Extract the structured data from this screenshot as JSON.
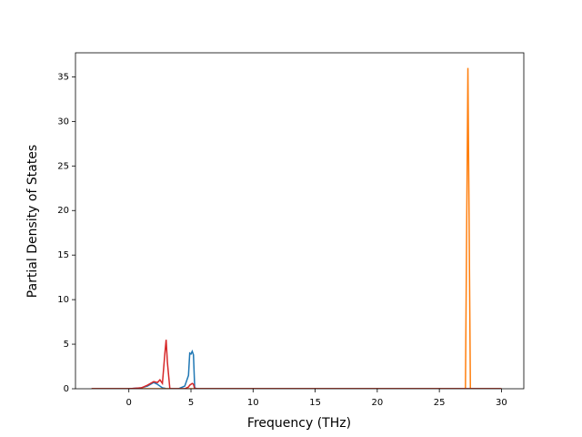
{
  "chart_data": {
    "type": "line",
    "x_label": "Frequency (THz)",
    "y_label": "Partial Density of States",
    "x": [
      -3,
      0,
      1,
      1.5,
      2,
      2.3,
      2.5,
      2.7,
      2.9,
      3.0,
      3.1,
      3.3,
      4,
      4.5,
      4.8,
      4.9,
      5.0,
      5.1,
      5.2,
      5.3,
      5.5,
      27.1,
      27.3,
      27.5,
      30
    ],
    "series": [
      {
        "color": "#1f77b4",
        "values": [
          0,
          0,
          0.1,
          0.3,
          0.7,
          0.5,
          0.3,
          0.1,
          0.05,
          0,
          0,
          0,
          0,
          0.3,
          1.5,
          4,
          3.9,
          4.2,
          3.8,
          0.1,
          0,
          0,
          0,
          0,
          0
        ]
      },
      {
        "color": "#ff7f0e",
        "values": [
          0,
          0,
          0,
          0,
          0,
          0,
          0,
          0,
          0,
          0,
          0,
          0,
          0,
          0,
          0,
          0,
          0,
          0,
          0,
          0,
          0,
          0,
          36,
          0,
          0
        ]
      },
      {
        "color": "#d62728",
        "values": [
          0,
          0,
          0.1,
          0.4,
          0.8,
          0.7,
          1.0,
          0.6,
          4.0,
          5.5,
          3.0,
          0,
          0,
          0,
          0.2,
          0.4,
          0.5,
          0.6,
          0.5,
          0,
          0,
          0,
          0,
          0,
          0
        ]
      }
    ],
    "xlim": [
      -4.3,
      31.8
    ],
    "ylim": [
      0,
      37.7
    ],
    "xticks": [
      0,
      5,
      10,
      15,
      20,
      25,
      30
    ],
    "yticks": [
      0,
      5,
      10,
      15,
      20,
      25,
      30,
      35
    ],
    "grid": false
  }
}
